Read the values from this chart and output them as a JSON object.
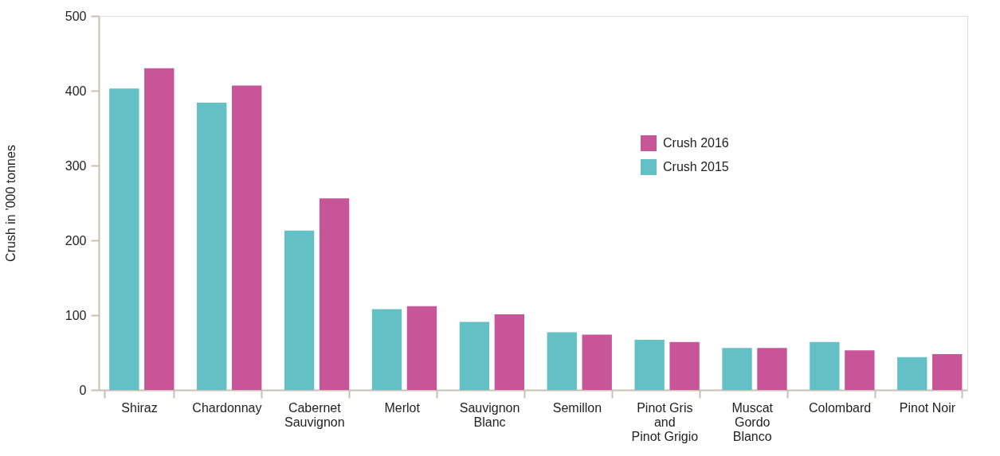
{
  "chart_data": {
    "type": "bar",
    "ylabel": "Crush in ’000 tonnes",
    "categories": [
      "Shiraz",
      "Chardonnay",
      "Cabernet\nSauvignon",
      "Merlot",
      "Sauvignon\nBlanc",
      "Semillon",
      "Pinot Gris\nand\nPinot Grigio",
      "Muscat\nGordo\nBlanco",
      "Colombard",
      "Pinot Noir"
    ],
    "series": [
      {
        "name": "Crush 2015",
        "color": "#63c1c5",
        "values": [
          403,
          384,
          213,
          108,
          91,
          77,
          67,
          56,
          64,
          44
        ]
      },
      {
        "name": "Crush 2016",
        "color": "#c85598",
        "values": [
          430,
          407,
          256,
          112,
          101,
          74,
          64,
          56,
          53,
          48
        ]
      }
    ],
    "ylim": [
      0,
      500
    ],
    "yticks": [
      0,
      100,
      200,
      300,
      400,
      500
    ],
    "grid": false,
    "legend": "top right"
  }
}
